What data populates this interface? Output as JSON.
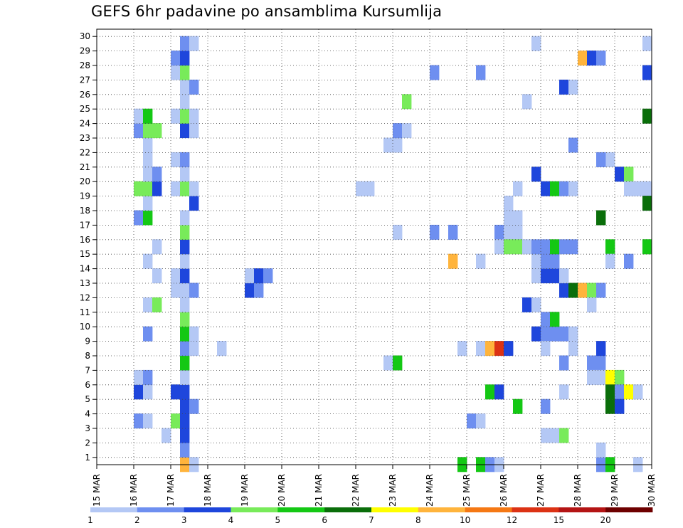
{
  "chart_data": {
    "type": "heatmap",
    "title": "GEFS 6hr padavine po ansamblima Kursumlija",
    "xlabel": "",
    "ylabel": "",
    "x_ticks": [
      "15 MAR",
      "16 MAR",
      "17 MAR",
      "18 MAR",
      "19 MAR",
      "20 MAR",
      "21 MAR",
      "22 MAR",
      "23 MAR",
      "24 MAR",
      "25 MAR",
      "26 MAR",
      "27 MAR",
      "28 MAR",
      "29 MAR",
      "30 MAR"
    ],
    "y_ticks": [
      "1",
      "2",
      "3",
      "4",
      "5",
      "6",
      "7",
      "8",
      "9",
      "10",
      "11",
      "12",
      "13",
      "14",
      "15",
      "16",
      "17",
      "18",
      "19",
      "20",
      "21",
      "22",
      "23",
      "24",
      "25",
      "26",
      "27",
      "28",
      "29",
      "30"
    ],
    "x_range": [
      "15 MAR 00Z",
      "30 MAR 00Z"
    ],
    "x_step_hours": 6,
    "y_range": [
      0,
      30
    ],
    "grid": true,
    "legend_placement": "bottom",
    "color_scale": {
      "levels": [
        "1",
        "2",
        "3",
        "4",
        "5",
        "6",
        "7",
        "8",
        "10",
        "12",
        "15",
        "20"
      ],
      "colors": [
        "#b4c8f5",
        "#6e8ff0",
        "#1e46dc",
        "#78eb5a",
        "#14c814",
        "#0a6e0a",
        "#ffff00",
        "#ffb43c",
        "#f57814",
        "#dc3214",
        "#b41414",
        "#6e0000"
      ]
    },
    "cells": [
      {
        "member": 0,
        "x": "17 MAR 06Z",
        "level": 8
      },
      {
        "member": 0,
        "x": "17 MAR 12Z",
        "level": 1
      },
      {
        "member": 1,
        "x": "17 MAR 06Z",
        "level": 2
      },
      {
        "member": 2,
        "x": "16 MAR 18Z",
        "level": 1
      },
      {
        "member": 2,
        "x": "17 MAR 06Z",
        "level": 3
      },
      {
        "member": 3,
        "x": "16 MAR 00Z",
        "level": 2
      },
      {
        "member": 3,
        "x": "16 MAR 06Z",
        "level": 1
      },
      {
        "member": 3,
        "x": "17 MAR 00Z",
        "level": 4
      },
      {
        "member": 3,
        "x": "17 MAR 06Z",
        "level": 3
      },
      {
        "member": 4,
        "x": "17 MAR 06Z",
        "level": 3
      },
      {
        "member": 4,
        "x": "17 MAR 12Z",
        "level": 2
      },
      {
        "member": 5,
        "x": "16 MAR 00Z",
        "level": 3
      },
      {
        "member": 5,
        "x": "16 MAR 06Z",
        "level": 1
      },
      {
        "member": 5,
        "x": "17 MAR 00Z",
        "level": 3
      },
      {
        "member": 5,
        "x": "17 MAR 06Z",
        "level": 3
      },
      {
        "member": 6,
        "x": "16 MAR 00Z",
        "level": 1
      },
      {
        "member": 6,
        "x": "16 MAR 06Z",
        "level": 2
      },
      {
        "member": 6,
        "x": "17 MAR 06Z",
        "level": 1
      },
      {
        "member": 7,
        "x": "17 MAR 06Z",
        "level": 5
      },
      {
        "member": 8,
        "x": "17 MAR 06Z",
        "level": 2
      },
      {
        "member": 8,
        "x": "17 MAR 12Z",
        "level": 1
      },
      {
        "member": 8,
        "x": "18 MAR 06Z",
        "level": 1
      },
      {
        "member": 9,
        "x": "16 MAR 06Z",
        "level": 2
      },
      {
        "member": 9,
        "x": "17 MAR 06Z",
        "level": 5
      },
      {
        "member": 9,
        "x": "17 MAR 12Z",
        "level": 1
      },
      {
        "member": 10,
        "x": "17 MAR 06Z",
        "level": 4
      },
      {
        "member": 11,
        "x": "16 MAR 06Z",
        "level": 1
      },
      {
        "member": 11,
        "x": "16 MAR 12Z",
        "level": 4
      },
      {
        "member": 11,
        "x": "17 MAR 06Z",
        "level": 1
      },
      {
        "member": 12,
        "x": "17 MAR 00Z",
        "level": 1
      },
      {
        "member": 12,
        "x": "17 MAR 06Z",
        "level": 1
      },
      {
        "member": 12,
        "x": "17 MAR 12Z",
        "level": 2
      },
      {
        "member": 13,
        "x": "16 MAR 12Z",
        "level": 1
      },
      {
        "member": 13,
        "x": "17 MAR 00Z",
        "level": 1
      },
      {
        "member": 13,
        "x": "17 MAR 06Z",
        "level": 3
      },
      {
        "member": 14,
        "x": "16 MAR 06Z",
        "level": 1
      },
      {
        "member": 14,
        "x": "17 MAR 06Z",
        "level": 1
      },
      {
        "member": 15,
        "x": "16 MAR 12Z",
        "level": 1
      },
      {
        "member": 15,
        "x": "17 MAR 06Z",
        "level": 3
      },
      {
        "member": 16,
        "x": "17 MAR 06Z",
        "level": 4
      },
      {
        "member": 17,
        "x": "16 MAR 00Z",
        "level": 2
      },
      {
        "member": 17,
        "x": "16 MAR 06Z",
        "level": 5
      },
      {
        "member": 17,
        "x": "17 MAR 06Z",
        "level": 1
      },
      {
        "member": 18,
        "x": "16 MAR 06Z",
        "level": 1
      },
      {
        "member": 18,
        "x": "17 MAR 12Z",
        "level": 3
      },
      {
        "member": 19,
        "x": "16 MAR 00Z",
        "level": 4
      },
      {
        "member": 19,
        "x": "16 MAR 06Z",
        "level": 4
      },
      {
        "member": 19,
        "x": "16 MAR 12Z",
        "level": 3
      },
      {
        "member": 19,
        "x": "17 MAR 00Z",
        "level": 1
      },
      {
        "member": 19,
        "x": "17 MAR 06Z",
        "level": 4
      },
      {
        "member": 19,
        "x": "17 MAR 12Z",
        "level": 1
      },
      {
        "member": 20,
        "x": "16 MAR 06Z",
        "level": 1
      },
      {
        "member": 20,
        "x": "16 MAR 12Z",
        "level": 2
      },
      {
        "member": 20,
        "x": "17 MAR 06Z",
        "level": 1
      },
      {
        "member": 21,
        "x": "16 MAR 06Z",
        "level": 1
      },
      {
        "member": 21,
        "x": "17 MAR 00Z",
        "level": 1
      },
      {
        "member": 21,
        "x": "17 MAR 06Z",
        "level": 2
      },
      {
        "member": 22,
        "x": "16 MAR 06Z",
        "level": 1
      },
      {
        "member": 23,
        "x": "16 MAR 00Z",
        "level": 2
      },
      {
        "member": 23,
        "x": "16 MAR 06Z",
        "level": 4
      },
      {
        "member": 23,
        "x": "16 MAR 12Z",
        "level": 4
      },
      {
        "member": 23,
        "x": "17 MAR 06Z",
        "level": 3
      },
      {
        "member": 23,
        "x": "17 MAR 12Z",
        "level": 1
      },
      {
        "member": 24,
        "x": "16 MAR 00Z",
        "level": 1
      },
      {
        "member": 24,
        "x": "16 MAR 06Z",
        "level": 5
      },
      {
        "member": 24,
        "x": "17 MAR 00Z",
        "level": 1
      },
      {
        "member": 24,
        "x": "17 MAR 06Z",
        "level": 4
      },
      {
        "member": 24,
        "x": "17 MAR 12Z",
        "level": 1
      },
      {
        "member": 25,
        "x": "17 MAR 06Z",
        "level": 1
      },
      {
        "member": 26,
        "x": "17 MAR 06Z",
        "level": 1
      },
      {
        "member": 26,
        "x": "17 MAR 12Z",
        "level": 2
      },
      {
        "member": 27,
        "x": "17 MAR 00Z",
        "level": 1
      },
      {
        "member": 27,
        "x": "17 MAR 06Z",
        "level": 4
      },
      {
        "member": 28,
        "x": "17 MAR 00Z",
        "level": 2
      },
      {
        "member": 28,
        "x": "17 MAR 06Z",
        "level": 3
      },
      {
        "member": 29,
        "x": "17 MAR 06Z",
        "level": 2
      },
      {
        "member": 29,
        "x": "17 MAR 12Z",
        "level": 1
      },
      {
        "member": 8,
        "x": "18 MAR 06Z",
        "level": 1
      },
      {
        "member": 12,
        "x": "19 MAR 00Z",
        "level": 3
      },
      {
        "member": 12,
        "x": "19 MAR 06Z",
        "level": 2
      },
      {
        "member": 13,
        "x": "19 MAR 00Z",
        "level": 1
      },
      {
        "member": 13,
        "x": "19 MAR 06Z",
        "level": 3
      },
      {
        "member": 13,
        "x": "19 MAR 12Z",
        "level": 2
      },
      {
        "member": 19,
        "x": "22 MAR 00Z",
        "level": 1
      },
      {
        "member": 19,
        "x": "22 MAR 06Z",
        "level": 1
      },
      {
        "member": 7,
        "x": "22 MAR 18Z",
        "level": 1
      },
      {
        "member": 7,
        "x": "23 MAR 00Z",
        "level": 5
      },
      {
        "member": 16,
        "x": "23 MAR 00Z",
        "level": 1
      },
      {
        "member": 22,
        "x": "22 MAR 18Z",
        "level": 1
      },
      {
        "member": 22,
        "x": "23 MAR 00Z",
        "level": 1
      },
      {
        "member": 23,
        "x": "23 MAR 00Z",
        "level": 2
      },
      {
        "member": 23,
        "x": "23 MAR 06Z",
        "level": 1
      },
      {
        "member": 25,
        "x": "23 MAR 06Z",
        "level": 4
      },
      {
        "member": 16,
        "x": "24 MAR 00Z",
        "level": 2
      },
      {
        "member": 16,
        "x": "24 MAR 12Z",
        "level": 2
      },
      {
        "member": 27,
        "x": "24 MAR 00Z",
        "level": 2
      },
      {
        "member": 14,
        "x": "24 MAR 12Z",
        "level": 9
      },
      {
        "member": 0,
        "x": "24 MAR 18Z",
        "level": 5
      },
      {
        "member": 0,
        "x": "25 MAR 06Z",
        "level": 5
      },
      {
        "member": 0,
        "x": "25 MAR 12Z",
        "level": 2
      },
      {
        "member": 0,
        "x": "25 MAR 18Z",
        "level": 1
      },
      {
        "member": 3,
        "x": "25 MAR 00Z",
        "level": 2
      },
      {
        "member": 3,
        "x": "25 MAR 06Z",
        "level": 1
      },
      {
        "member": 8,
        "x": "24 MAR 18Z",
        "level": 1
      },
      {
        "member": 8,
        "x": "25 MAR 06Z",
        "level": 1
      },
      {
        "member": 8,
        "x": "25 MAR 12Z",
        "level": 9
      },
      {
        "member": 8,
        "x": "25 MAR 18Z",
        "level": 12
      },
      {
        "member": 8,
        "x": "26 MAR 00Z",
        "level": 3
      },
      {
        "member": 5,
        "x": "25 MAR 12Z",
        "level": 5
      },
      {
        "member": 5,
        "x": "25 MAR 18Z",
        "level": 3
      },
      {
        "member": 14,
        "x": "25 MAR 06Z",
        "level": 1
      },
      {
        "member": 27,
        "x": "25 MAR 06Z",
        "level": 2
      },
      {
        "member": 4,
        "x": "26 MAR 06Z",
        "level": 5
      },
      {
        "member": 16,
        "x": "25 MAR 18Z",
        "level": 2
      },
      {
        "member": 16,
        "x": "26 MAR 00Z",
        "level": 1
      },
      {
        "member": 16,
        "x": "26 MAR 06Z",
        "level": 1
      },
      {
        "member": 15,
        "x": "25 MAR 18Z",
        "level": 1
      },
      {
        "member": 15,
        "x": "26 MAR 00Z",
        "level": 4
      },
      {
        "member": 15,
        "x": "26 MAR 06Z",
        "level": 4
      },
      {
        "member": 17,
        "x": "26 MAR 00Z",
        "level": 1
      },
      {
        "member": 17,
        "x": "26 MAR 06Z",
        "level": 1
      },
      {
        "member": 18,
        "x": "26 MAR 00Z",
        "level": 1
      },
      {
        "member": 19,
        "x": "26 MAR 06Z",
        "level": 1
      },
      {
        "member": 9,
        "x": "26 MAR 18Z",
        "level": 3
      },
      {
        "member": 9,
        "x": "27 MAR 06Z",
        "level": 2
      },
      {
        "member": 9,
        "x": "27 MAR 12Z",
        "level": 2
      },
      {
        "member": 9,
        "x": "27 MAR 18Z",
        "level": 1
      },
      {
        "member": 9,
        "x": "27 MAR 00Z",
        "level": 2
      },
      {
        "member": 25,
        "x": "26 MAR 12Z",
        "level": 1
      },
      {
        "member": 29,
        "x": "26 MAR 18Z",
        "level": 1
      },
      {
        "member": 20,
        "x": "26 MAR 18Z",
        "level": 3
      },
      {
        "member": 11,
        "x": "26 MAR 12Z",
        "level": 3
      },
      {
        "member": 11,
        "x": "26 MAR 18Z",
        "level": 1
      },
      {
        "member": 10,
        "x": "27 MAR 00Z",
        "level": 2
      },
      {
        "member": 10,
        "x": "27 MAR 06Z",
        "level": 5
      },
      {
        "member": 4,
        "x": "27 MAR 00Z",
        "level": 2
      },
      {
        "member": 2,
        "x": "27 MAR 00Z",
        "level": 1
      },
      {
        "member": 2,
        "x": "27 MAR 06Z",
        "level": 1
      },
      {
        "member": 2,
        "x": "27 MAR 12Z",
        "level": 4
      },
      {
        "member": 7,
        "x": "27 MAR 12Z",
        "level": 2
      },
      {
        "member": 5,
        "x": "27 MAR 12Z",
        "level": 1
      },
      {
        "member": 12,
        "x": "27 MAR 12Z",
        "level": 3
      },
      {
        "member": 12,
        "x": "27 MAR 18Z",
        "level": 6
      },
      {
        "member": 12,
        "x": "28 MAR 00Z",
        "level": 9
      },
      {
        "member": 12,
        "x": "28 MAR 06Z",
        "level": 4
      },
      {
        "member": 12,
        "x": "28 MAR 12Z",
        "level": 2
      },
      {
        "member": 13,
        "x": "26 MAR 18Z",
        "level": 1
      },
      {
        "member": 13,
        "x": "27 MAR 00Z",
        "level": 3
      },
      {
        "member": 13,
        "x": "27 MAR 06Z",
        "level": 3
      },
      {
        "member": 13,
        "x": "27 MAR 12Z",
        "level": 1
      },
      {
        "member": 14,
        "x": "26 MAR 18Z",
        "level": 1
      },
      {
        "member": 14,
        "x": "27 MAR 00Z",
        "level": 2
      },
      {
        "member": 14,
        "x": "27 MAR 06Z",
        "level": 2
      },
      {
        "member": 15,
        "x": "26 MAR 12Z",
        "level": 1
      },
      {
        "member": 15,
        "x": "26 MAR 18Z",
        "level": 2
      },
      {
        "member": 15,
        "x": "27 MAR 00Z",
        "level": 2
      },
      {
        "member": 15,
        "x": "27 MAR 06Z",
        "level": 5
      },
      {
        "member": 15,
        "x": "27 MAR 12Z",
        "level": 2
      },
      {
        "member": 15,
        "x": "27 MAR 18Z",
        "level": 2
      },
      {
        "member": 15,
        "x": "28 MAR 18Z",
        "level": 5
      },
      {
        "member": 19,
        "x": "27 MAR 00Z",
        "level": 3
      },
      {
        "member": 19,
        "x": "27 MAR 06Z",
        "level": 5
      },
      {
        "member": 19,
        "x": "27 MAR 12Z",
        "level": 2
      },
      {
        "member": 19,
        "x": "27 MAR 18Z",
        "level": 1
      },
      {
        "member": 26,
        "x": "27 MAR 12Z",
        "level": 3
      },
      {
        "member": 26,
        "x": "27 MAR 18Z",
        "level": 1
      },
      {
        "member": 28,
        "x": "28 MAR 00Z",
        "level": 9
      },
      {
        "member": 28,
        "x": "28 MAR 06Z",
        "level": 3
      },
      {
        "member": 28,
        "x": "28 MAR 12Z",
        "level": 2
      },
      {
        "member": 22,
        "x": "27 MAR 18Z",
        "level": 2
      },
      {
        "member": 21,
        "x": "28 MAR 18Z",
        "level": 1
      },
      {
        "member": 21,
        "x": "28 MAR 12Z",
        "level": 2
      },
      {
        "member": 11,
        "x": "28 MAR 06Z",
        "level": 1
      },
      {
        "member": 17,
        "x": "28 MAR 12Z",
        "level": 6
      },
      {
        "member": 14,
        "x": "28 MAR 18Z",
        "level": 1
      },
      {
        "member": 14,
        "x": "29 MAR 06Z",
        "level": 2
      },
      {
        "member": 8,
        "x": "27 MAR 00Z",
        "level": 1
      },
      {
        "member": 8,
        "x": "27 MAR 18Z",
        "level": 1
      },
      {
        "member": 7,
        "x": "28 MAR 06Z",
        "level": 2
      },
      {
        "member": 7,
        "x": "28 MAR 12Z",
        "level": 2
      },
      {
        "member": 6,
        "x": "28 MAR 06Z",
        "level": 1
      },
      {
        "member": 6,
        "x": "28 MAR 12Z",
        "level": 1
      },
      {
        "member": 6,
        "x": "28 MAR 18Z",
        "level": 7
      },
      {
        "member": 6,
        "x": "29 MAR 00Z",
        "level": 4
      },
      {
        "member": 5,
        "x": "28 MAR 18Z",
        "level": 6
      },
      {
        "member": 5,
        "x": "29 MAR 00Z",
        "level": 2
      },
      {
        "member": 5,
        "x": "29 MAR 06Z",
        "level": 7
      },
      {
        "member": 5,
        "x": "29 MAR 12Z",
        "level": 1
      },
      {
        "member": 4,
        "x": "28 MAR 18Z",
        "level": 6
      },
      {
        "member": 4,
        "x": "29 MAR 00Z",
        "level": 3
      },
      {
        "member": 0,
        "x": "28 MAR 12Z",
        "level": 2
      },
      {
        "member": 0,
        "x": "28 MAR 18Z",
        "level": 5
      },
      {
        "member": 0,
        "x": "29 MAR 12Z",
        "level": 1
      },
      {
        "member": 8,
        "x": "28 MAR 12Z",
        "level": 3
      },
      {
        "member": 20,
        "x": "29 MAR 00Z",
        "level": 3
      },
      {
        "member": 20,
        "x": "29 MAR 06Z",
        "level": 4
      },
      {
        "member": 19,
        "x": "29 MAR 06Z",
        "level": 1
      },
      {
        "member": 19,
        "x": "29 MAR 12Z",
        "level": 1
      },
      {
        "member": 19,
        "x": "29 MAR 18Z",
        "level": 1
      },
      {
        "member": 18,
        "x": "29 MAR 18Z",
        "level": 2
      },
      {
        "member": 18,
        "x": "29 MAR 23Z",
        "level": 6
      },
      {
        "member": 15,
        "x": "29 MAR 18Z",
        "level": 4
      },
      {
        "member": 15,
        "x": "29 MAR 23Z",
        "level": 5
      },
      {
        "member": 24,
        "x": "29 MAR 18Z",
        "level": 6
      },
      {
        "member": 27,
        "x": "29 MAR 18Z",
        "level": 5
      },
      {
        "member": 27,
        "x": "29 MAR 23Z",
        "level": 3
      },
      {
        "member": 29,
        "x": "29 MAR 18Z",
        "level": 1
      },
      {
        "member": 1,
        "x": "28 MAR 12Z",
        "level": 1
      }
    ]
  }
}
